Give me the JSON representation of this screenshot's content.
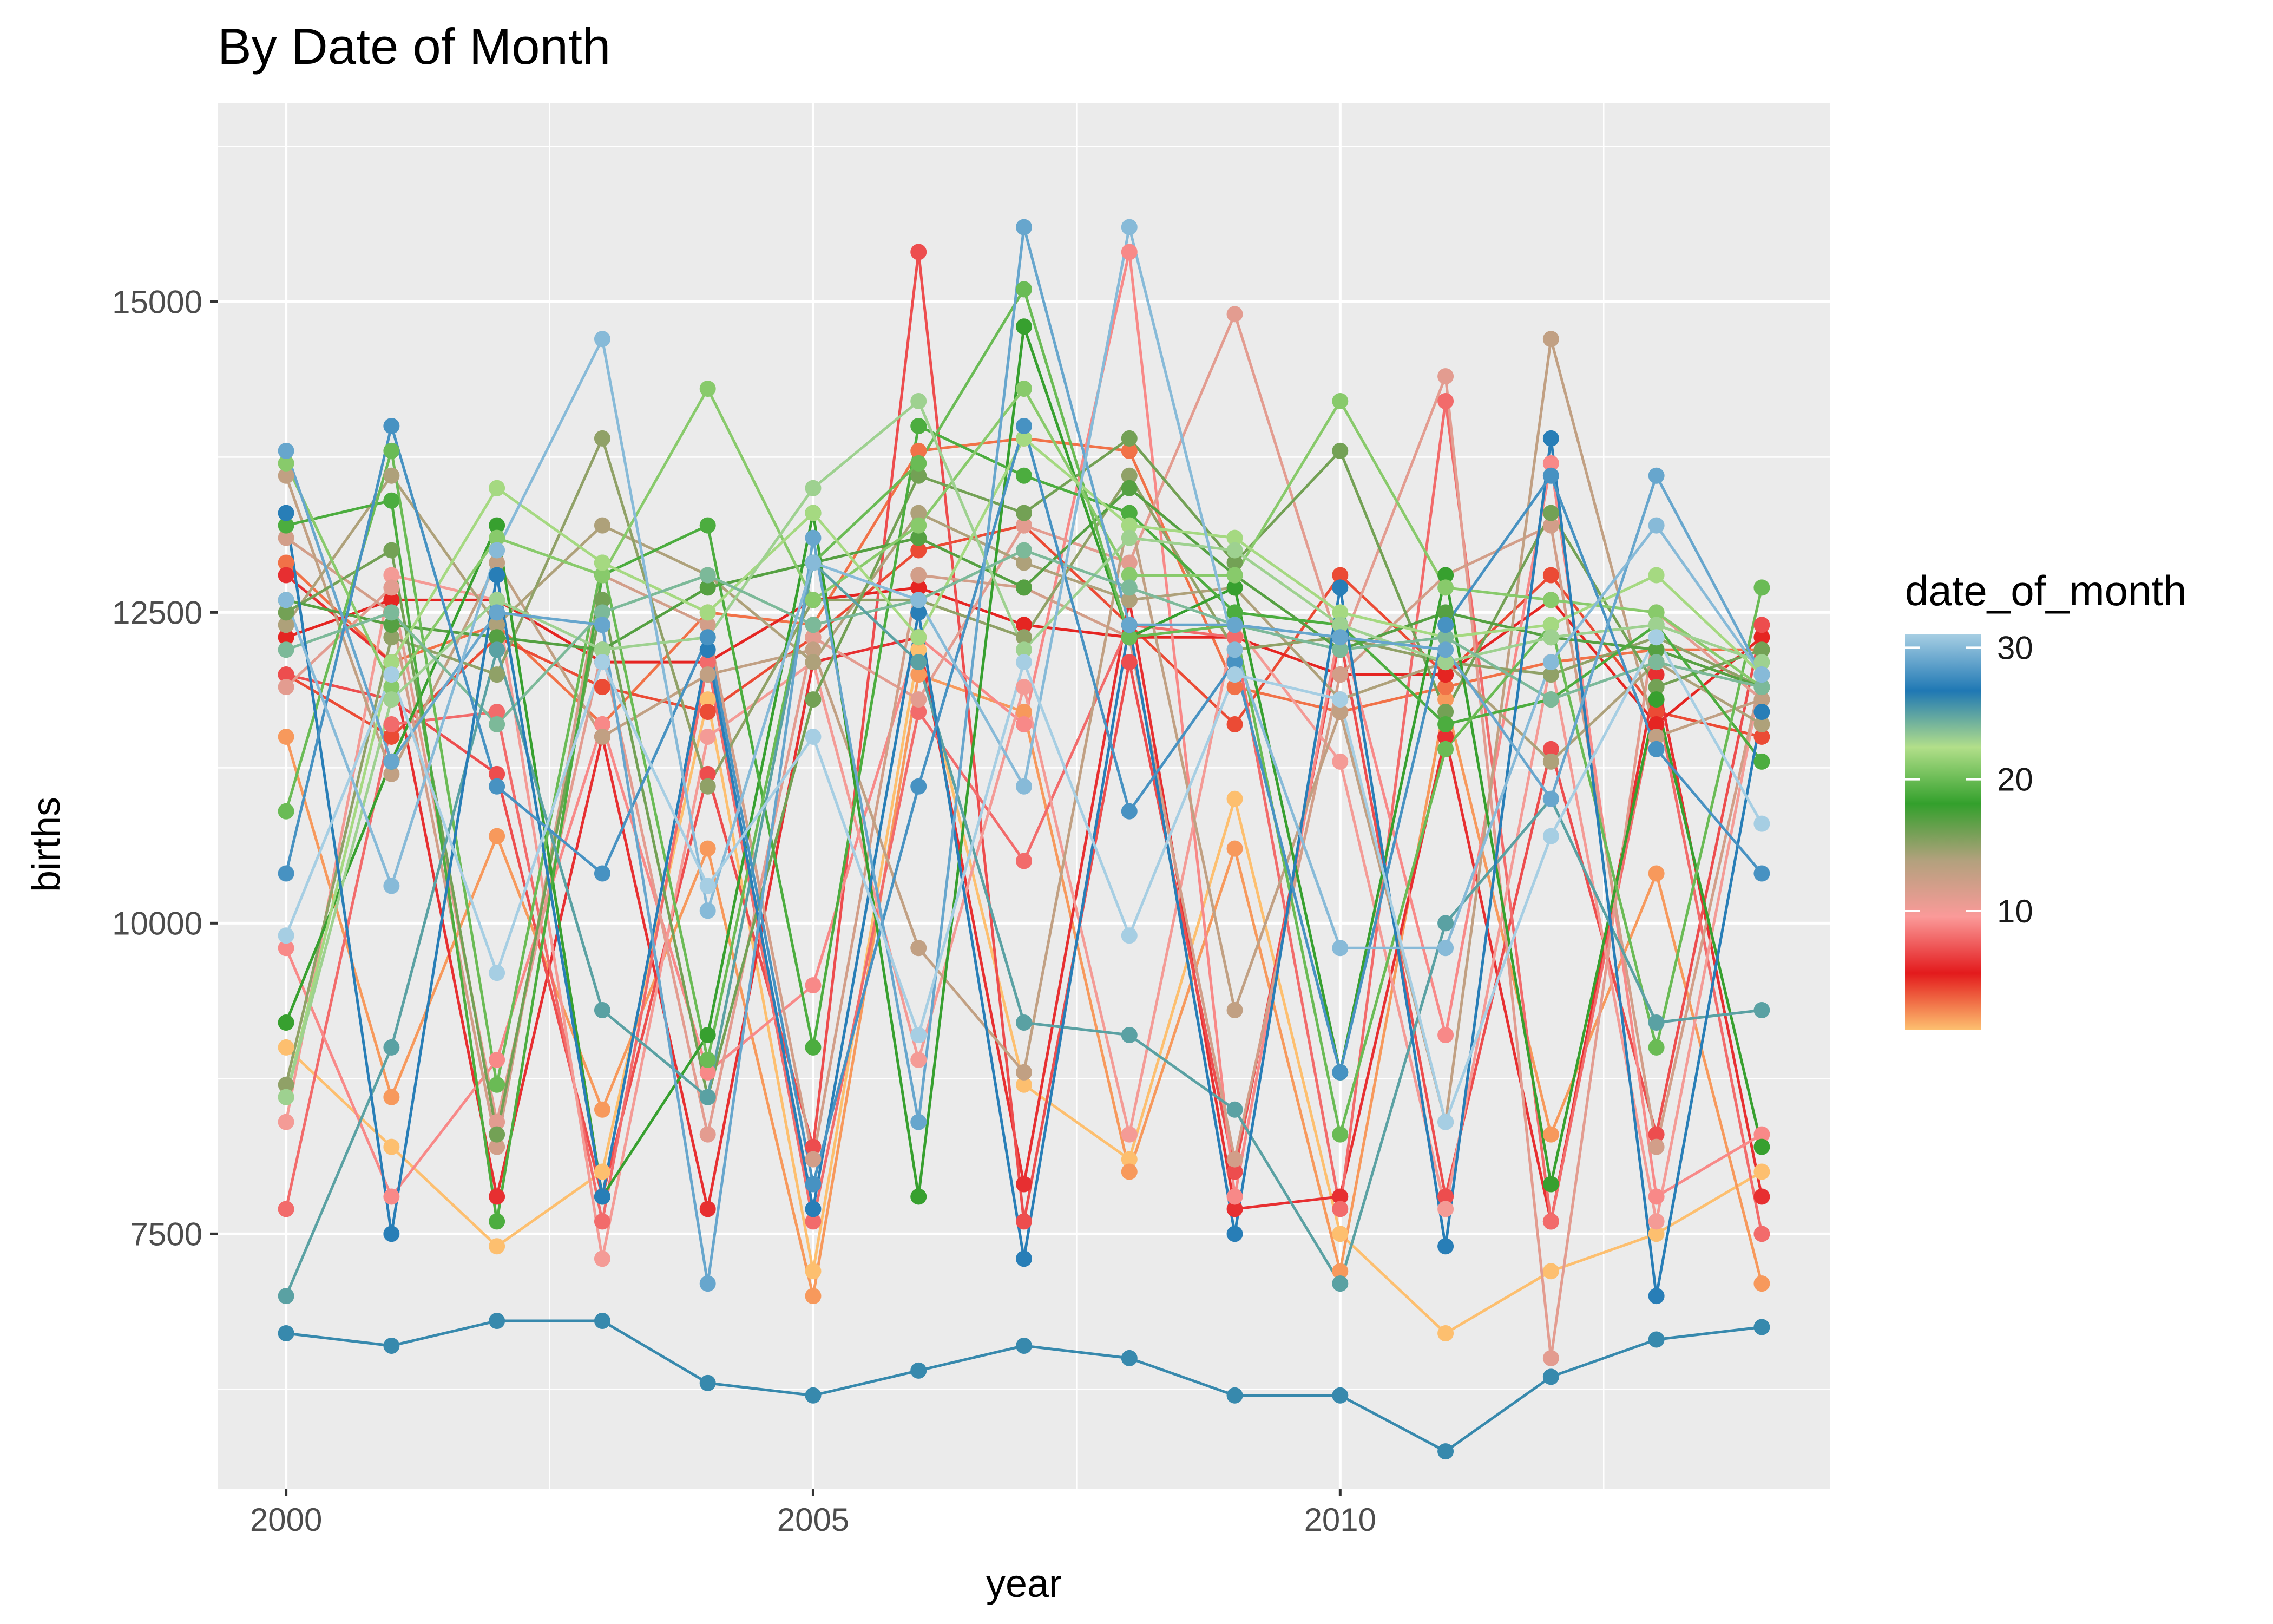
{
  "chart_data": {
    "type": "line",
    "title": "By Date of Month",
    "xlabel": "year",
    "ylabel": "births",
    "xlim": [
      1999.35,
      2014.65
    ],
    "ylim": [
      5450,
      16600
    ],
    "x_ticks": [
      2000,
      2005,
      2010
    ],
    "x_tick_labels": [
      "2000",
      "2005",
      "2010"
    ],
    "y_ticks": [
      7500,
      10000,
      12500,
      15000
    ],
    "y_tick_labels": [
      "7500",
      "10000",
      "12500",
      "15000"
    ],
    "grid": true,
    "legend": {
      "title": "date_of_month",
      "position": "right",
      "type": "colorbar",
      "range": [
        1,
        31
      ],
      "labels": [
        "30",
        "20",
        "10"
      ],
      "label_values": [
        30,
        20,
        10
      ],
      "palette": [
        "#fdbf6f",
        "#e31a1c",
        "#fb9a99",
        "#b2a17d",
        "#33a02c",
        "#b2df8a",
        "#1f78b4",
        "#a6cee3"
      ]
    },
    "x": [
      2000,
      2001,
      2002,
      2003,
      2004,
      2005,
      2006,
      2007,
      2008,
      2009,
      2010,
      2011,
      2012,
      2013,
      2014
    ],
    "series": [
      {
        "name": "1",
        "values": [
          9000,
          8200,
          7400,
          8000,
          11800,
          7200,
          12200,
          8700,
          8100,
          11000,
          7500,
          6700,
          7200,
          7500,
          8000
        ]
      },
      {
        "name": "2",
        "values": [
          11500,
          8600,
          10700,
          8500,
          10600,
          7000,
          12000,
          11700,
          8000,
          10600,
          7200,
          11800,
          8300,
          10400,
          7100
        ]
      },
      {
        "name": "3",
        "values": [
          12900,
          12100,
          12400,
          11600,
          12500,
          12400,
          13800,
          13900,
          13800,
          11900,
          11700,
          11900,
          12100,
          12200,
          12200
        ]
      },
      {
        "name": "4",
        "values": [
          12000,
          11500,
          12300,
          11900,
          11700,
          12300,
          13000,
          13200,
          12400,
          11600,
          12800,
          12000,
          12800,
          11700,
          11500
        ]
      },
      {
        "name": "5",
        "values": [
          12300,
          12600,
          12600,
          12100,
          12100,
          12600,
          12700,
          12400,
          12300,
          12300,
          12000,
          12000,
          12600,
          11600,
          12300
        ]
      },
      {
        "name": "6",
        "values": [
          12800,
          12100,
          7800,
          11500,
          7700,
          12100,
          12300,
          7900,
          12600,
          7700,
          7800,
          11500,
          7600,
          12000,
          7800
        ]
      },
      {
        "name": "7",
        "values": [
          12000,
          11800,
          11200,
          7800,
          11200,
          8200,
          15400,
          7600,
          12100,
          8000,
          12300,
          7800,
          11400,
          8300,
          12400
        ]
      },
      {
        "name": "8",
        "values": [
          7700,
          11600,
          11700,
          7600,
          12100,
          7600,
          11700,
          10500,
          12400,
          12300,
          7700,
          14200,
          7600,
          11800,
          7500
        ]
      },
      {
        "name": "9",
        "values": [
          9800,
          7800,
          8900,
          11600,
          8800,
          9500,
          12300,
          11600,
          15400,
          7800,
          12400,
          9100,
          13700,
          7800,
          8300
        ]
      },
      {
        "name": "10",
        "values": [
          8400,
          12800,
          12600,
          7300,
          11500,
          12100,
          8900,
          11900,
          8300,
          12400,
          11300,
          7700,
          12100,
          7600,
          12000
        ]
      },
      {
        "name": "11",
        "values": [
          11900,
          12700,
          8400,
          12200,
          8300,
          12300,
          11800,
          13200,
          12900,
          14900,
          12200,
          14400,
          6500,
          12500,
          11800
        ]
      },
      {
        "name": "12",
        "values": [
          13100,
          12500,
          8200,
          12800,
          12400,
          8100,
          12800,
          12700,
          12300,
          8100,
          12000,
          12800,
          13200,
          8200,
          12000
        ]
      },
      {
        "name": "13",
        "values": [
          13600,
          11200,
          12900,
          11500,
          12000,
          12200,
          9800,
          8800,
          13300,
          9300,
          11700,
          8400,
          14700,
          11500,
          11800
        ]
      },
      {
        "name": "14",
        "values": [
          12400,
          13600,
          12400,
          13200,
          12800,
          12100,
          13300,
          12900,
          12600,
          12700,
          11800,
          12100,
          11300,
          12100,
          11600
        ]
      },
      {
        "name": "15",
        "values": [
          8700,
          12300,
          12000,
          13900,
          11100,
          12600,
          12600,
          12300,
          13600,
          12200,
          12300,
          12100,
          12000,
          12300,
          11900
        ]
      },
      {
        "name": "16",
        "values": [
          12500,
          13000,
          8300,
          12600,
          8600,
          11800,
          13600,
          13300,
          13900,
          12900,
          13800,
          11700,
          13300,
          11900,
          12200
        ]
      },
      {
        "name": "17",
        "values": [
          12600,
          12400,
          12300,
          12200,
          12700,
          12900,
          13100,
          12700,
          13500,
          12800,
          12200,
          12500,
          12300,
          12200,
          11900
        ]
      },
      {
        "name": "18",
        "values": [
          9200,
          11300,
          13200,
          7800,
          9100,
          13300,
          7800,
          14800,
          12300,
          12700,
          8800,
          12800,
          7900,
          11800,
          8200
        ]
      },
      {
        "name": "19",
        "values": [
          13200,
          13400,
          7600,
          12800,
          13200,
          9000,
          14000,
          13600,
          13300,
          12500,
          12400,
          11600,
          11800,
          12400,
          11300
        ]
      },
      {
        "name": "20",
        "values": [
          10900,
          13800,
          8700,
          12900,
          8900,
          12900,
          13700,
          15100,
          12300,
          12400,
          8300,
          11400,
          12400,
          9000,
          12700
        ]
      },
      {
        "name": "21",
        "values": [
          13700,
          11900,
          13100,
          12800,
          14300,
          12600,
          13200,
          14300,
          12800,
          12800,
          14200,
          12700,
          12600,
          12500,
          11900
        ]
      },
      {
        "name": "22",
        "values": [
          8600,
          12100,
          13500,
          12900,
          12500,
          13300,
          12300,
          13900,
          13200,
          13100,
          12500,
          12300,
          12400,
          12800,
          12000
        ]
      },
      {
        "name": "23",
        "values": [
          8600,
          11800,
          12600,
          12200,
          12300,
          13500,
          14200,
          12200,
          13100,
          13000,
          12400,
          12100,
          12300,
          12400,
          12100
        ]
      },
      {
        "name": "24",
        "values": [
          12200,
          12500,
          11600,
          12500,
          12800,
          12400,
          12600,
          13000,
          12700,
          12400,
          12200,
          12300,
          11800,
          12100,
          11900
        ]
      },
      {
        "name": "25",
        "values": [
          7000,
          9000,
          12200,
          9300,
          8600,
          12900,
          12100,
          9200,
          9100,
          8500,
          7100,
          10000,
          11000,
          9200,
          9300
        ]
      },
      {
        "name": "26",
        "values": [
          6700,
          6600,
          6800,
          6800,
          6300,
          6200,
          6400,
          6600,
          6500,
          6200,
          6200,
          5750,
          6350,
          6650,
          6750
        ]
      },
      {
        "name": "27",
        "values": [
          13300,
          7500,
          12800,
          7800,
          12200,
          7700,
          12500,
          7300,
          12400,
          7500,
          12700,
          7400,
          13900,
          7000,
          11700
        ]
      },
      {
        "name": "28",
        "values": [
          10400,
          14000,
          11100,
          10400,
          12300,
          7900,
          11100,
          14000,
          10900,
          12100,
          8800,
          12400,
          13600,
          11400,
          10400
        ]
      },
      {
        "name": "29",
        "values": [
          13800,
          11300,
          12500,
          12400,
          7100,
          13100,
          8400,
          15600,
          12400,
          12400,
          12300,
          12200,
          11000,
          13600,
          12000
        ]
      },
      {
        "name": "30",
        "values": [
          12600,
          10300,
          13000,
          14700,
          10100,
          12900,
          12600,
          11100,
          15600,
          12200,
          9800,
          9800,
          12100,
          13200,
          12000
        ]
      },
      {
        "name": "31",
        "values": [
          9900,
          12000,
          9600,
          12100,
          10300,
          11500,
          9100,
          12100,
          9900,
          12000,
          11800,
          8400,
          10700,
          12300,
          10800
        ]
      }
    ]
  }
}
